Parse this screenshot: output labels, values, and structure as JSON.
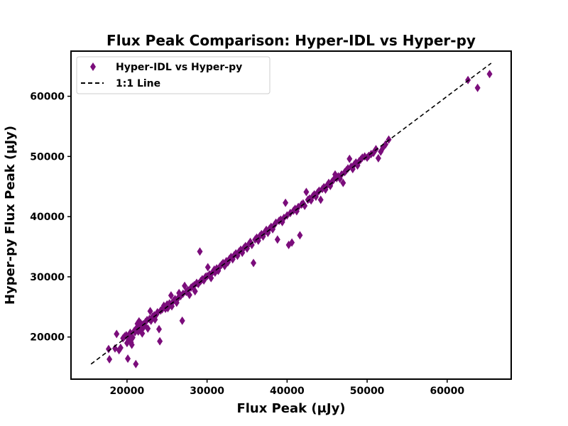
{
  "chart_data": {
    "type": "scatter",
    "title": "Flux Peak Comparison: Hyper-IDL vs Hyper-py",
    "xlabel": "Flux Peak (μJy)",
    "ylabel": "Hyper-py Flux Peak (μJy)",
    "xlim": [
      13000,
      68000
    ],
    "ylim": [
      13000,
      67500
    ],
    "xticks": [
      20000,
      30000,
      40000,
      50000,
      60000
    ],
    "yticks": [
      20000,
      30000,
      40000,
      50000,
      60000
    ],
    "grid": false,
    "legend_position": "top-left",
    "colors": {
      "scatter": "#7b0d7b",
      "line": "#000000"
    },
    "series": [
      {
        "name": "Hyper-IDL vs Hyper-py",
        "kind": "scatter",
        "marker": "thin-diamond",
        "points": [
          [
            17700,
            18000
          ],
          [
            17800,
            16300
          ],
          [
            18500,
            18100
          ],
          [
            18700,
            20500
          ],
          [
            19000,
            17800
          ],
          [
            19200,
            18200
          ],
          [
            19500,
            19800
          ],
          [
            19700,
            20100
          ],
          [
            19900,
            20300
          ],
          [
            20000,
            19000
          ],
          [
            20100,
            16400
          ],
          [
            20200,
            19500
          ],
          [
            20300,
            20400
          ],
          [
            20400,
            20700
          ],
          [
            20500,
            19100
          ],
          [
            20600,
            18700
          ],
          [
            20700,
            19900
          ],
          [
            20900,
            21000
          ],
          [
            21000,
            20800
          ],
          [
            21100,
            15500
          ],
          [
            21200,
            21500
          ],
          [
            21300,
            22200
          ],
          [
            21400,
            20900
          ],
          [
            21500,
            22600
          ],
          [
            21600,
            21800
          ],
          [
            21700,
            22300
          ],
          [
            21800,
            21200
          ],
          [
            21900,
            20600
          ],
          [
            22000,
            22100
          ],
          [
            22100,
            21700
          ],
          [
            22200,
            21900
          ],
          [
            22300,
            22500
          ],
          [
            22500,
            22800
          ],
          [
            22600,
            21400
          ],
          [
            22800,
            23000
          ],
          [
            22900,
            24300
          ],
          [
            23000,
            22700
          ],
          [
            23200,
            23400
          ],
          [
            23400,
            23600
          ],
          [
            23500,
            22900
          ],
          [
            23700,
            23800
          ],
          [
            23800,
            24100
          ],
          [
            24000,
            21300
          ],
          [
            24100,
            19300
          ],
          [
            24200,
            24400
          ],
          [
            24400,
            24600
          ],
          [
            24600,
            25200
          ],
          [
            24800,
            24700
          ],
          [
            25000,
            25400
          ],
          [
            25100,
            24800
          ],
          [
            25300,
            25600
          ],
          [
            25500,
            26900
          ],
          [
            25600,
            25100
          ],
          [
            25800,
            26000
          ],
          [
            26000,
            26300
          ],
          [
            26200,
            25700
          ],
          [
            26400,
            26500
          ],
          [
            26500,
            27300
          ],
          [
            26700,
            26800
          ],
          [
            26900,
            22700
          ],
          [
            27000,
            27200
          ],
          [
            27200,
            28500
          ],
          [
            27400,
            27500
          ],
          [
            27600,
            27800
          ],
          [
            27800,
            27000
          ],
          [
            28000,
            28200
          ],
          [
            28200,
            28400
          ],
          [
            28400,
            28600
          ],
          [
            28500,
            27600
          ],
          [
            28700,
            29000
          ],
          [
            28900,
            28800
          ],
          [
            29100,
            34200
          ],
          [
            29200,
            29300
          ],
          [
            29400,
            29600
          ],
          [
            29600,
            29400
          ],
          [
            29800,
            30000
          ],
          [
            30000,
            30100
          ],
          [
            30100,
            31600
          ],
          [
            30300,
            30400
          ],
          [
            30500,
            29800
          ],
          [
            30700,
            30800
          ],
          [
            30900,
            31200
          ],
          [
            31000,
            30700
          ],
          [
            31200,
            31400
          ],
          [
            31400,
            31000
          ],
          [
            31600,
            31700
          ],
          [
            31800,
            32000
          ],
          [
            32000,
            32300
          ],
          [
            32200,
            31800
          ],
          [
            32400,
            32600
          ],
          [
            32600,
            32400
          ],
          [
            32800,
            33000
          ],
          [
            33000,
            33300
          ],
          [
            33200,
            32900
          ],
          [
            33400,
            33600
          ],
          [
            33600,
            33900
          ],
          [
            33800,
            33500
          ],
          [
            34000,
            34200
          ],
          [
            34200,
            34500
          ],
          [
            34400,
            34000
          ],
          [
            34600,
            34800
          ],
          [
            34800,
            35100
          ],
          [
            35000,
            34700
          ],
          [
            35200,
            35400
          ],
          [
            35400,
            35800
          ],
          [
            35600,
            35300
          ],
          [
            35800,
            32300
          ],
          [
            36000,
            36200
          ],
          [
            36200,
            36500
          ],
          [
            36400,
            36000
          ],
          [
            36600,
            36800
          ],
          [
            36800,
            37100
          ],
          [
            37000,
            36700
          ],
          [
            37200,
            37400
          ],
          [
            37400,
            37800
          ],
          [
            37600,
            37300
          ],
          [
            37800,
            38000
          ],
          [
            38000,
            38300
          ],
          [
            38200,
            37900
          ],
          [
            38400,
            38600
          ],
          [
            38600,
            39000
          ],
          [
            38800,
            36200
          ],
          [
            39000,
            39300
          ],
          [
            39200,
            39500
          ],
          [
            39400,
            39100
          ],
          [
            39600,
            39800
          ],
          [
            39800,
            42300
          ],
          [
            40000,
            40200
          ],
          [
            40200,
            35300
          ],
          [
            40400,
            40600
          ],
          [
            40600,
            35700
          ],
          [
            40800,
            41000
          ],
          [
            41000,
            41300
          ],
          [
            41200,
            40900
          ],
          [
            41400,
            41600
          ],
          [
            41600,
            36900
          ],
          [
            41800,
            42000
          ],
          [
            42000,
            42200
          ],
          [
            42200,
            41800
          ],
          [
            42400,
            44100
          ],
          [
            42600,
            42800
          ],
          [
            42800,
            43000
          ],
          [
            43000,
            42700
          ],
          [
            43200,
            43400
          ],
          [
            43400,
            43700
          ],
          [
            43600,
            43300
          ],
          [
            43800,
            44000
          ],
          [
            44000,
            44300
          ],
          [
            44200,
            42800
          ],
          [
            44400,
            44600
          ],
          [
            44600,
            44900
          ],
          [
            44800,
            44500
          ],
          [
            45000,
            45200
          ],
          [
            45200,
            45600
          ],
          [
            45400,
            45100
          ],
          [
            45600,
            45800
          ],
          [
            45800,
            46100
          ],
          [
            46000,
            47000
          ],
          [
            46200,
            46400
          ],
          [
            46400,
            46700
          ],
          [
            46600,
            46300
          ],
          [
            46800,
            47000
          ],
          [
            47000,
            45600
          ],
          [
            47200,
            47400
          ],
          [
            47400,
            47700
          ],
          [
            47600,
            48000
          ],
          [
            47800,
            49600
          ],
          [
            48000,
            48300
          ],
          [
            48200,
            47900
          ],
          [
            48400,
            48700
          ],
          [
            48600,
            49000
          ],
          [
            48800,
            48500
          ],
          [
            49000,
            49200
          ],
          [
            49200,
            49500
          ],
          [
            49400,
            49800
          ],
          [
            49700,
            50000
          ],
          [
            50000,
            49800
          ],
          [
            50200,
            50100
          ],
          [
            50500,
            50400
          ],
          [
            50800,
            50600
          ],
          [
            51100,
            51200
          ],
          [
            51400,
            49700
          ],
          [
            51700,
            50800
          ],
          [
            52000,
            51500
          ],
          [
            52300,
            52000
          ],
          [
            52700,
            52800
          ],
          [
            62600,
            62700
          ],
          [
            63800,
            61400
          ],
          [
            65300,
            63700
          ]
        ]
      },
      {
        "name": "1:1 Line",
        "kind": "line",
        "style": "dashed",
        "points": [
          [
            15500,
            15500
          ],
          [
            65500,
            65500
          ]
        ]
      }
    ]
  }
}
